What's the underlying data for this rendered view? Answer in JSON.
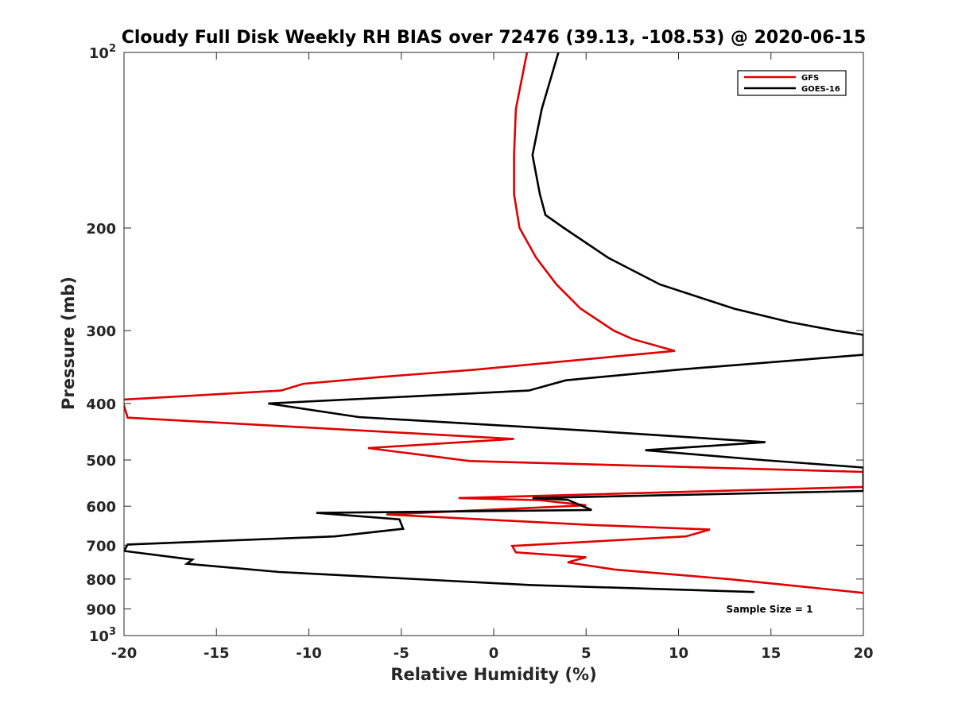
{
  "chart_data": {
    "type": "line",
    "title": "Cloudy Full Disk Weekly RH BIAS over 72476 (39.13, -108.53) @ 2020-06-15",
    "xlabel": "Relative Humidity (%)",
    "ylabel": "Pressure (mb)",
    "xlim": [
      -20,
      20
    ],
    "ylim": [
      100,
      1000
    ],
    "y_scale": "log",
    "y_reversed": true,
    "grid": false,
    "legend_position": "top-right",
    "x_ticks": [
      -20,
      -15,
      -10,
      -5,
      0,
      5,
      10,
      15,
      20
    ],
    "y_ticks": [
      {
        "value": 100,
        "label": "10",
        "sup": "2"
      },
      {
        "value": 200,
        "label": "200",
        "sup": ""
      },
      {
        "value": 300,
        "label": "300",
        "sup": ""
      },
      {
        "value": 400,
        "label": "400",
        "sup": ""
      },
      {
        "value": 500,
        "label": "500",
        "sup": ""
      },
      {
        "value": 600,
        "label": "600",
        "sup": ""
      },
      {
        "value": 700,
        "label": "700",
        "sup": ""
      },
      {
        "value": 800,
        "label": "800",
        "sup": ""
      },
      {
        "value": 900,
        "label": "900",
        "sup": ""
      },
      {
        "value": 1000,
        "label": "10",
        "sup": "3"
      }
    ],
    "series": [
      {
        "name": "GFS",
        "color": "#e00000",
        "points": [
          [
            1.8,
            100
          ],
          [
            1.2,
            125
          ],
          [
            1.1,
            150
          ],
          [
            1.1,
            175
          ],
          [
            1.4,
            200
          ],
          [
            2.3,
            225
          ],
          [
            3.4,
            250
          ],
          [
            4.7,
            275
          ],
          [
            6.5,
            300
          ],
          [
            7.5,
            310
          ],
          [
            9.8,
            325
          ],
          [
            -1.0,
            350
          ],
          [
            -6.0,
            360
          ],
          [
            -10.3,
            370
          ],
          [
            -11.5,
            380
          ],
          [
            -20.1,
            394
          ],
          [
            -19.8,
            423
          ],
          [
            1.1,
            460
          ],
          [
            -6.8,
            477
          ],
          [
            -1.3,
            502
          ],
          [
            20.0,
            524
          ],
          [
            20.0,
            556
          ],
          [
            -1.9,
            581
          ],
          [
            2.5,
            586
          ],
          [
            5.0,
            598
          ],
          [
            -5.8,
            620
          ],
          [
            5.2,
            646
          ],
          [
            11.7,
            658
          ],
          [
            10.4,
            676
          ],
          [
            1.0,
            702
          ],
          [
            1.2,
            720
          ],
          [
            5.0,
            734
          ],
          [
            4.0,
            749
          ],
          [
            5.4,
            761
          ],
          [
            6.6,
            771
          ],
          [
            12.7,
            800
          ],
          [
            20.0,
            845
          ]
        ]
      },
      {
        "name": "GOES-16",
        "color": "#000000",
        "points": [
          [
            3.5,
            100
          ],
          [
            2.6,
            125
          ],
          [
            2.1,
            150
          ],
          [
            2.5,
            175
          ],
          [
            2.8,
            190
          ],
          [
            3.8,
            200
          ],
          [
            6.2,
            225
          ],
          [
            9.0,
            250
          ],
          [
            13.0,
            275
          ],
          [
            16.0,
            290
          ],
          [
            18.5,
            300
          ],
          [
            20.0,
            305
          ],
          [
            20.0,
            330
          ],
          [
            10.0,
            350
          ],
          [
            3.9,
            365
          ],
          [
            1.9,
            380
          ],
          [
            -12.2,
            400
          ],
          [
            -7.3,
            422
          ],
          [
            5.0,
            445
          ],
          [
            14.7,
            466
          ],
          [
            8.2,
            481
          ],
          [
            14.5,
            500
          ],
          [
            20.0,
            515
          ],
          [
            20.0,
            565
          ],
          [
            2.1,
            581
          ],
          [
            4.0,
            585
          ],
          [
            5.3,
            609
          ],
          [
            -9.6,
            616
          ],
          [
            -5.1,
            632
          ],
          [
            -4.9,
            656
          ],
          [
            -8.6,
            676
          ],
          [
            -19.8,
            698
          ],
          [
            -20.0,
            716
          ],
          [
            -16.3,
            741
          ],
          [
            -16.6,
            753
          ],
          [
            -11.6,
            778
          ],
          [
            2.0,
            819
          ],
          [
            14.1,
            842
          ]
        ]
      }
    ],
    "annotations": [
      {
        "text": "Sample Size = 1"
      }
    ]
  }
}
